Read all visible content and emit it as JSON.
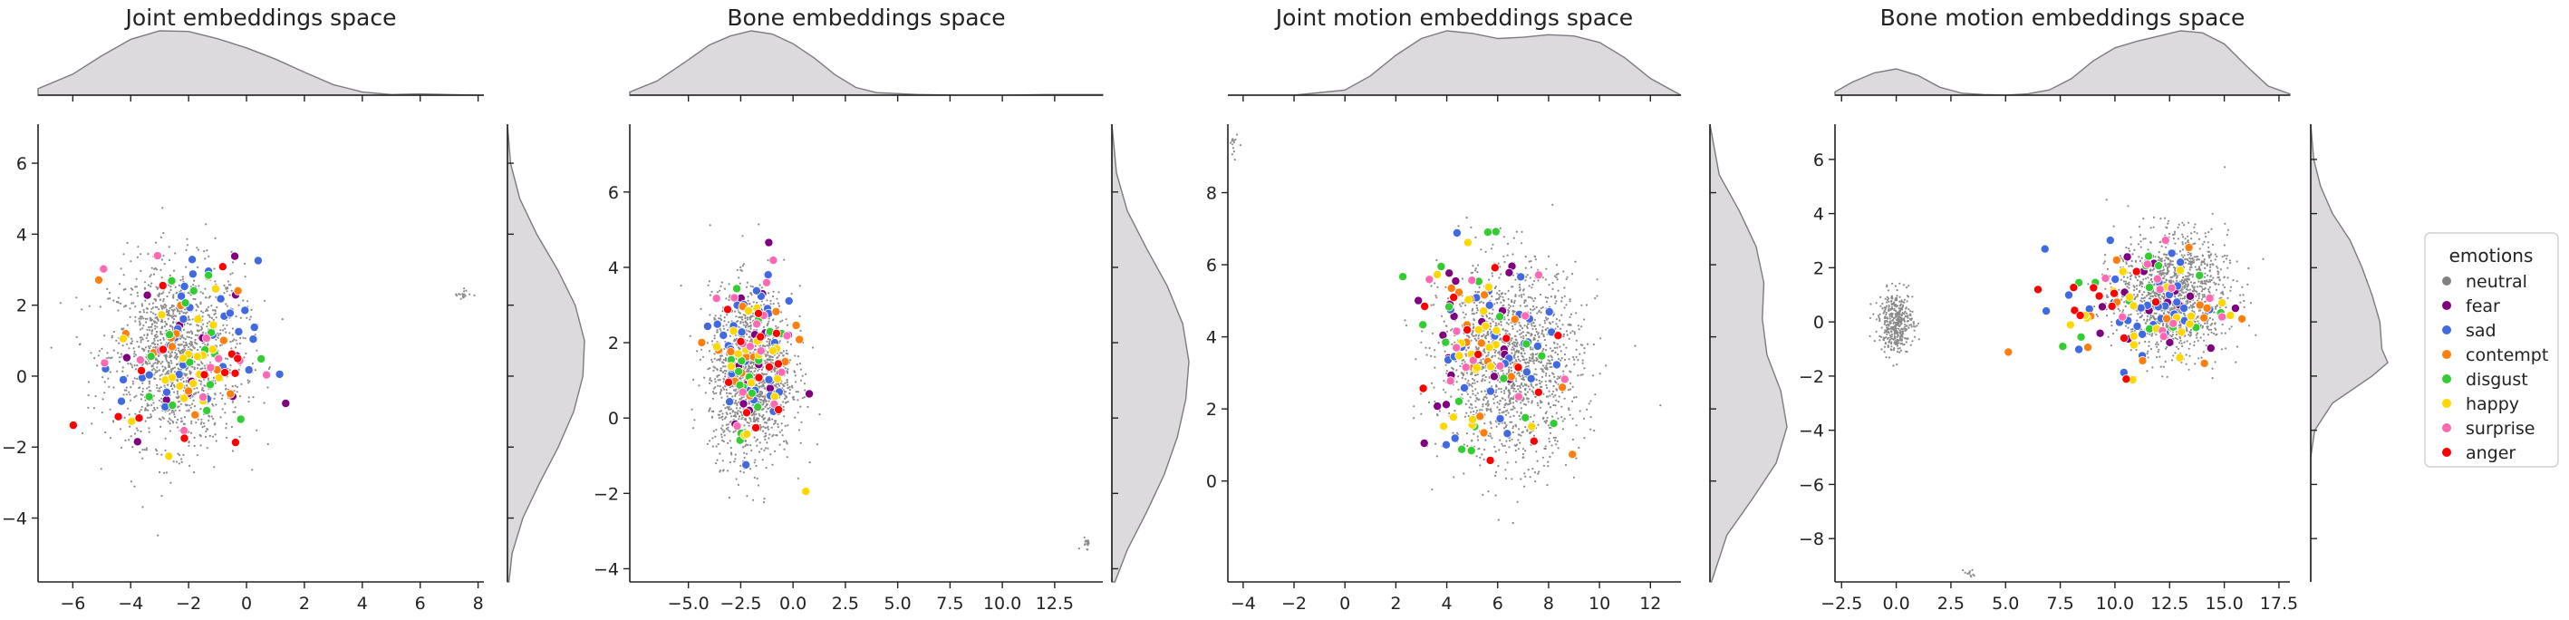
{
  "legend": {
    "title": "emotions",
    "items": [
      {
        "label": "neutral",
        "color": "#808080"
      },
      {
        "label": "fear",
        "color": "#800080"
      },
      {
        "label": "sad",
        "color": "#4169e1"
      },
      {
        "label": "contempt",
        "color": "#ff7f0e"
      },
      {
        "label": "disgust",
        "color": "#32cd32"
      },
      {
        "label": "happy",
        "color": "#ffd700"
      },
      {
        "label": "surprise",
        "color": "#ff69b4"
      },
      {
        "label": "anger",
        "color": "#ff0000"
      }
    ]
  },
  "chart_data": [
    {
      "type": "scatter",
      "title": "Joint embeddings space",
      "xlabel": "",
      "ylabel": "",
      "xlim": [
        -7.2,
        8.2
      ],
      "ylim": [
        -5.8,
        7.1
      ],
      "xticks": [
        -6,
        -4,
        -2,
        0,
        2,
        4,
        6,
        8
      ],
      "xtick_labels": [
        "−6",
        "−4",
        "−2",
        "0",
        "2",
        "4",
        "6",
        "8"
      ],
      "yticks": [
        -4,
        -2,
        0,
        2,
        4,
        6
      ],
      "ytick_labels": [
        "−4",
        "−2",
        "0",
        "2",
        "4",
        "6"
      ],
      "kde_x": {
        "x": [
          -7.2,
          -6,
          -5,
          -4,
          -3,
          -2,
          -1,
          0,
          1,
          2,
          3,
          4,
          5,
          6,
          7,
          8.2
        ],
        "density": [
          0.1,
          0.32,
          0.6,
          0.85,
          0.98,
          0.97,
          0.86,
          0.72,
          0.55,
          0.35,
          0.16,
          0.05,
          0.01,
          0.02,
          0.01,
          0.0
        ]
      },
      "kde_y": {
        "y": [
          -5.8,
          -5,
          -4,
          -3,
          -2,
          -1,
          0,
          1,
          2,
          3,
          4,
          5,
          6,
          7.1
        ],
        "density": [
          0.02,
          0.06,
          0.2,
          0.42,
          0.66,
          0.86,
          0.98,
          1.0,
          0.88,
          0.65,
          0.38,
          0.16,
          0.04,
          0.0
        ]
      },
      "neutral_clusters": [
        {
          "cx": -2.4,
          "cy": 0.6,
          "sx": 2.1,
          "sy": 2.3,
          "n": 1500
        },
        {
          "cx": 7.4,
          "cy": 2.3,
          "sx": 0.3,
          "sy": 0.15,
          "n": 18
        }
      ],
      "emotion_counts": {
        "fear": 14,
        "sad": 32,
        "contempt": 14,
        "disgust": 16,
        "happy": 20,
        "surprise": 12,
        "anger": 14
      },
      "emotion_region": {
        "cx": -2.0,
        "cy": 0.6,
        "sx": 2.0,
        "sy": 2.2
      }
    },
    {
      "type": "scatter",
      "title": "Bone embeddings space",
      "xlabel": "",
      "ylabel": "",
      "xlim": [
        -7.8,
        14.8
      ],
      "ylim": [
        -4.35,
        7.8
      ],
      "xticks": [
        -5,
        -2.5,
        0,
        2.5,
        5,
        7.5,
        10,
        12.5
      ],
      "xtick_labels": [
        "−5.0",
        "−2.5",
        "0.0",
        "2.5",
        "5.0",
        "7.5",
        "10.0",
        "12.5"
      ],
      "yticks": [
        -4,
        -2,
        0,
        2,
        4,
        6
      ],
      "ytick_labels": [
        "−4",
        "−2",
        "0",
        "2",
        "4",
        "6"
      ],
      "kde_x": {
        "x": [
          -7.8,
          -6.5,
          -5,
          -4,
          -3,
          -2,
          -1,
          0,
          1,
          2,
          3,
          4,
          6,
          8,
          10,
          12,
          14.8
        ],
        "density": [
          0.05,
          0.22,
          0.55,
          0.78,
          0.92,
          1.0,
          0.95,
          0.8,
          0.58,
          0.32,
          0.12,
          0.04,
          0.01,
          0.0,
          0.0,
          0.01,
          0.01
        ]
      },
      "kde_y": {
        "y": [
          -4.35,
          -3.5,
          -2.5,
          -1.5,
          -0.5,
          0.5,
          1.5,
          2.5,
          3.5,
          4.5,
          5.5,
          6.5,
          7.8
        ],
        "density": [
          0.04,
          0.2,
          0.45,
          0.68,
          0.85,
          0.96,
          1.0,
          0.92,
          0.72,
          0.45,
          0.2,
          0.06,
          0.0
        ]
      },
      "neutral_clusters": [
        {
          "cx": -2.0,
          "cy": 1.2,
          "sx": 1.8,
          "sy": 2.0,
          "n": 1500
        },
        {
          "cx": 14.0,
          "cy": -3.3,
          "sx": 0.25,
          "sy": 0.15,
          "n": 16
        }
      ],
      "emotion_counts": {
        "fear": 18,
        "sad": 36,
        "contempt": 14,
        "disgust": 16,
        "happy": 18,
        "surprise": 14,
        "anger": 12
      },
      "emotion_region": {
        "cx": -2.0,
        "cy": 1.5,
        "sx": 1.7,
        "sy": 1.9
      }
    },
    {
      "type": "scatter",
      "title": "Joint motion embeddings space",
      "xlabel": "",
      "ylabel": "",
      "xlim": [
        -4.6,
        13.2
      ],
      "ylim": [
        -2.8,
        9.9
      ],
      "xticks": [
        -4,
        -2,
        0,
        2,
        4,
        6,
        8,
        10,
        12
      ],
      "xtick_labels": [
        "−4",
        "−2",
        "0",
        "2",
        "4",
        "6",
        "8",
        "10",
        "12"
      ],
      "yticks": [
        0,
        2,
        4,
        6,
        8
      ],
      "ytick_labels": [
        "0",
        "2",
        "4",
        "6",
        "8"
      ],
      "kde_x": {
        "x": [
          -4.6,
          -2,
          0,
          1,
          2,
          3,
          4,
          5,
          6,
          7,
          8,
          9,
          10,
          11,
          12,
          13.2
        ],
        "density": [
          0.0,
          0.0,
          0.08,
          0.3,
          0.62,
          0.88,
          1.0,
          0.96,
          0.88,
          0.9,
          0.94,
          0.92,
          0.82,
          0.58,
          0.26,
          0.0
        ]
      },
      "kde_y": {
        "y": [
          -2.8,
          -1.5,
          -0.5,
          0.5,
          1.5,
          2.5,
          3.5,
          4.5,
          5.5,
          6.5,
          7.5,
          8.5,
          9.9
        ],
        "density": [
          0.02,
          0.22,
          0.55,
          0.86,
          1.0,
          0.92,
          0.74,
          0.68,
          0.7,
          0.6,
          0.38,
          0.12,
          0.0
        ]
      },
      "neutral_clusters": [
        {
          "cx": 6.5,
          "cy": 3.3,
          "sx": 2.5,
          "sy": 2.4,
          "n": 1600
        },
        {
          "cx": -4.4,
          "cy": 9.3,
          "sx": 0.15,
          "sy": 0.4,
          "n": 14
        }
      ],
      "emotion_counts": {
        "fear": 20,
        "sad": 30,
        "contempt": 16,
        "disgust": 18,
        "happy": 22,
        "surprise": 12,
        "anger": 12
      },
      "emotion_region": {
        "cx": 5.5,
        "cy": 3.6,
        "sx": 2.4,
        "sy": 2.3
      }
    },
    {
      "type": "scatter",
      "title": "Bone motion embeddings space",
      "xlabel": "",
      "ylabel": "",
      "xlim": [
        -2.8,
        18.0
      ],
      "ylim": [
        -9.6,
        7.3
      ],
      "xticks": [
        -2.5,
        0,
        2.5,
        5,
        7.5,
        10,
        12.5,
        15,
        17.5
      ],
      "xtick_labels": [
        "−2.5",
        "0.0",
        "2.5",
        "5.0",
        "7.5",
        "10.0",
        "12.5",
        "15.0",
        "17.5"
      ],
      "yticks": [
        -8,
        -6,
        -4,
        -2,
        0,
        2,
        4,
        6
      ],
      "ytick_labels": [
        "−8",
        "−6",
        "−4",
        "−2",
        "0",
        "2",
        "4",
        "6"
      ],
      "kde_x": {
        "x": [
          -2.8,
          -2,
          -1,
          0,
          1,
          2,
          3,
          4,
          5,
          6,
          7,
          8,
          9,
          10,
          11,
          12,
          13,
          14,
          15,
          16,
          17,
          18
        ],
        "density": [
          0.05,
          0.2,
          0.34,
          0.4,
          0.3,
          0.12,
          0.03,
          0.01,
          0.0,
          0.02,
          0.08,
          0.25,
          0.52,
          0.72,
          0.82,
          0.9,
          0.98,
          0.95,
          0.78,
          0.45,
          0.14,
          0.02
        ]
      },
      "kde_y": {
        "y": [
          -9.6,
          -5,
          -4,
          -3,
          -2,
          -1.5,
          -1,
          0,
          1,
          2,
          3,
          4,
          5,
          6,
          7.3
        ],
        "density": [
          0.0,
          0.0,
          0.04,
          0.22,
          0.62,
          0.78,
          0.72,
          0.7,
          0.62,
          0.52,
          0.4,
          0.22,
          0.1,
          0.03,
          0.0
        ]
      },
      "neutral_clusters": [
        {
          "cx": 0.0,
          "cy": 0.0,
          "sx": 0.7,
          "sy": 1.0,
          "n": 420
        },
        {
          "cx": 12.6,
          "cy": 1.0,
          "sx": 2.3,
          "sy": 2.0,
          "n": 1350
        },
        {
          "cx": 3.4,
          "cy": -9.3,
          "sx": 0.25,
          "sy": 0.15,
          "n": 12
        }
      ],
      "emotion_counts": {
        "fear": 16,
        "sad": 32,
        "contempt": 14,
        "disgust": 14,
        "happy": 20,
        "surprise": 12,
        "anger": 12
      },
      "emotion_region": {
        "cx": 11.5,
        "cy": 0.6,
        "sx": 3.2,
        "sy": 1.9
      }
    }
  ]
}
